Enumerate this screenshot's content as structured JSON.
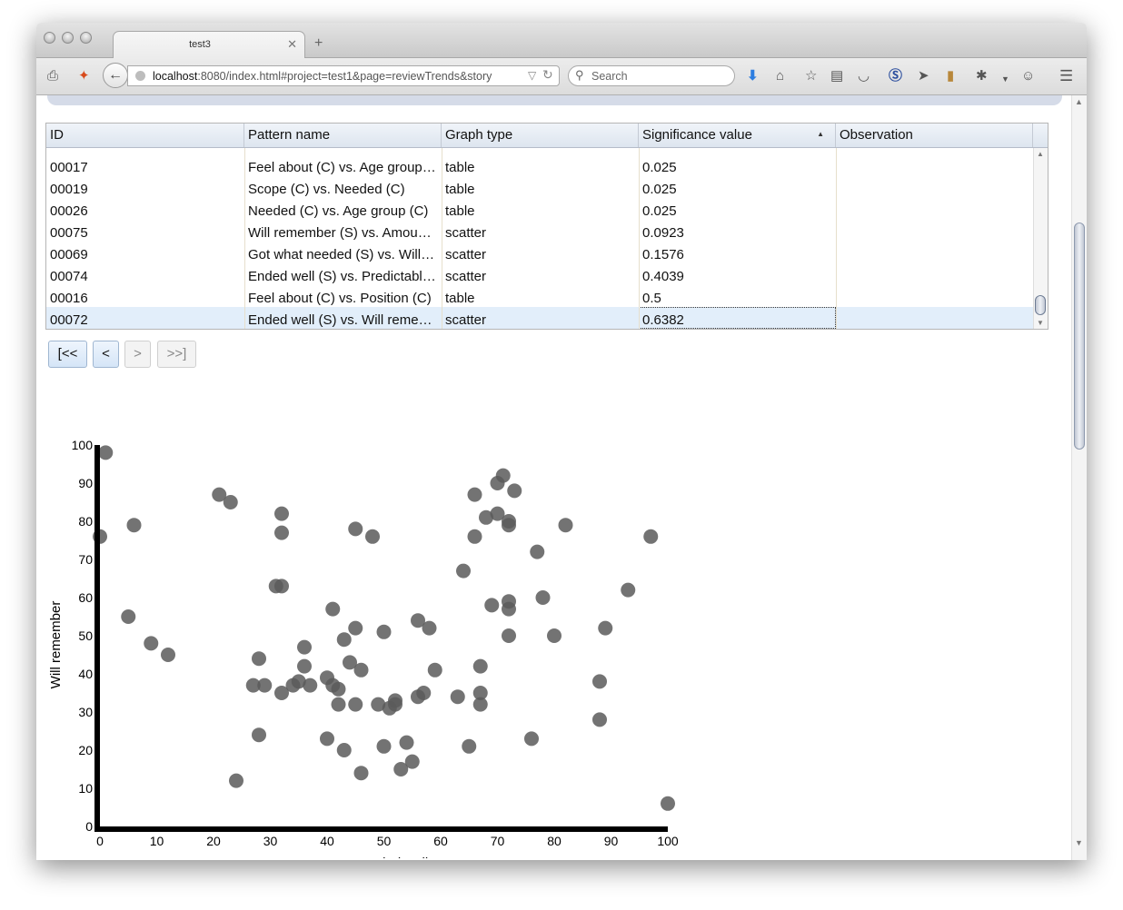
{
  "browser": {
    "tab_title": "test3",
    "url_host": "localhost",
    "url_rest": ":8080/index.html#project=test1&page=reviewTrends&story",
    "search_placeholder": "Search"
  },
  "grid": {
    "columns": [
      "ID",
      "Pattern name",
      "Graph type",
      "Significance value",
      "Observation"
    ],
    "rows": [
      {
        "id": "00017",
        "pattern": "Feel about (C) vs. Age group (C)",
        "type": "table",
        "sig": "0.025",
        "obs": ""
      },
      {
        "id": "00019",
        "pattern": "Scope (C) vs. Needed (C)",
        "type": "table",
        "sig": "0.025",
        "obs": ""
      },
      {
        "id": "00026",
        "pattern": "Needed (C) vs. Age group (C)",
        "type": "table",
        "sig": "0.025",
        "obs": ""
      },
      {
        "id": "00075",
        "pattern": "Will remember (S) vs. Amount (S)",
        "type": "scatter",
        "sig": "0.0923",
        "obs": ""
      },
      {
        "id": "00069",
        "pattern": "Got what needed (S) vs. Will (S)",
        "type": "scatter",
        "sig": "0.1576",
        "obs": ""
      },
      {
        "id": "00074",
        "pattern": "Ended well (S) vs. Predictable (S)",
        "type": "scatter",
        "sig": "0.4039",
        "obs": ""
      },
      {
        "id": "00016",
        "pattern": "Feel about (C) vs. Position (C)",
        "type": "table",
        "sig": "0.5",
        "obs": ""
      },
      {
        "id": "00072",
        "pattern": "Ended well (S) vs. Will remember (S)",
        "type": "scatter",
        "sig": "0.6382",
        "obs": ""
      }
    ],
    "selected_row": 7
  },
  "pager": {
    "first": "[<<",
    "prev": "<",
    "next": ">",
    "last": ">>]"
  },
  "chart_data": {
    "type": "scatter",
    "xlabel": "Ended well",
    "ylabel": "Will remember",
    "xlim": [
      0,
      100
    ],
    "ylim": [
      0,
      100
    ],
    "xticks": [
      0,
      10,
      20,
      30,
      40,
      50,
      60,
      70,
      80,
      90,
      100
    ],
    "yticks": [
      0,
      10,
      20,
      30,
      40,
      50,
      60,
      70,
      80,
      90,
      100
    ],
    "point_color": "#5a5a5a",
    "points": [
      [
        1,
        98
      ],
      [
        0,
        76
      ],
      [
        6,
        79
      ],
      [
        5,
        55
      ],
      [
        9,
        48
      ],
      [
        12,
        45
      ],
      [
        21,
        87
      ],
      [
        23,
        85
      ],
      [
        24,
        12
      ],
      [
        27,
        37
      ],
      [
        28,
        44
      ],
      [
        28,
        24
      ],
      [
        29,
        37
      ],
      [
        31,
        63
      ],
      [
        32,
        63
      ],
      [
        32,
        82
      ],
      [
        32,
        77
      ],
      [
        32,
        35
      ],
      [
        34,
        37
      ],
      [
        35,
        38
      ],
      [
        36,
        47
      ],
      [
        36,
        42
      ],
      [
        37,
        37
      ],
      [
        40,
        39
      ],
      [
        40,
        23
      ],
      [
        41,
        57
      ],
      [
        41,
        37
      ],
      [
        42,
        36
      ],
      [
        42,
        32
      ],
      [
        43,
        49
      ],
      [
        43,
        20
      ],
      [
        44,
        43
      ],
      [
        45,
        78
      ],
      [
        45,
        52
      ],
      [
        45,
        32
      ],
      [
        46,
        41
      ],
      [
        46,
        14
      ],
      [
        48,
        76
      ],
      [
        49,
        32
      ],
      [
        50,
        51
      ],
      [
        50,
        21
      ],
      [
        51,
        31
      ],
      [
        52,
        33
      ],
      [
        52,
        32
      ],
      [
        53,
        15
      ],
      [
        54,
        22
      ],
      [
        55,
        17
      ],
      [
        56,
        54
      ],
      [
        56,
        34
      ],
      [
        57,
        35
      ],
      [
        58,
        52
      ],
      [
        59,
        41
      ],
      [
        63,
        34
      ],
      [
        64,
        67
      ],
      [
        65,
        21
      ],
      [
        66,
        87
      ],
      [
        66,
        76
      ],
      [
        67,
        42
      ],
      [
        67,
        35
      ],
      [
        67,
        32
      ],
      [
        68,
        81
      ],
      [
        69,
        58
      ],
      [
        70,
        90
      ],
      [
        70,
        82
      ],
      [
        71,
        92
      ],
      [
        72,
        80
      ],
      [
        72,
        79
      ],
      [
        72,
        59
      ],
      [
        72,
        57
      ],
      [
        72,
        50
      ],
      [
        73,
        88
      ],
      [
        76,
        23
      ],
      [
        77,
        72
      ],
      [
        78,
        60
      ],
      [
        80,
        50
      ],
      [
        82,
        79
      ],
      [
        88,
        38
      ],
      [
        88,
        28
      ],
      [
        89,
        52
      ],
      [
        93,
        62
      ],
      [
        97,
        76
      ],
      [
        100,
        6
      ]
    ]
  }
}
